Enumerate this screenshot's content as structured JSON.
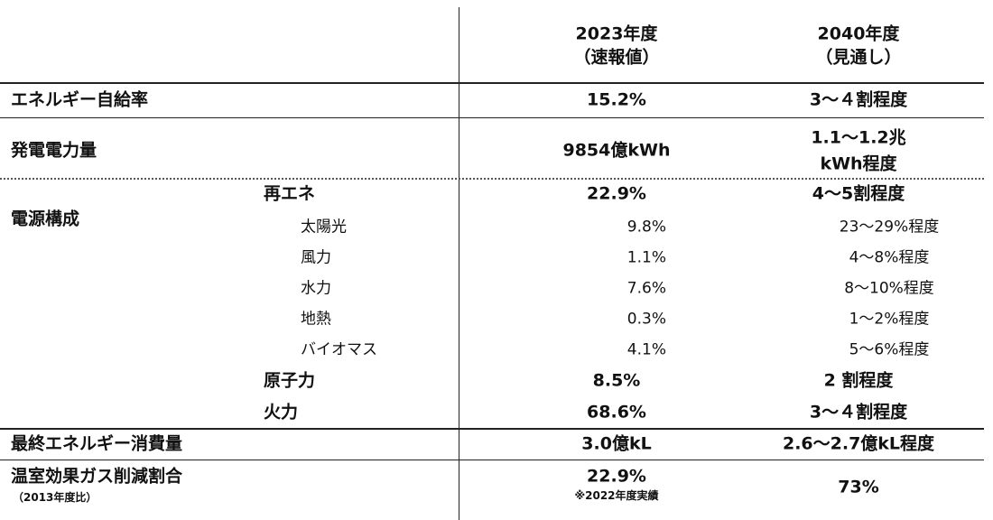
{
  "table": {
    "header": [
      [
        "2023年度",
        "（速報値）"
      ],
      [
        "2040年度",
        "（見通し）"
      ]
    ],
    "rows": [
      {
        "label": "エネルギー自給率",
        "cells": [
          [
            "15.2%"
          ],
          [
            "3～４割程度"
          ]
        ]
      },
      {
        "label": "発電電力量",
        "cells": [
          [
            "9854億kWh"
          ],
          [
            "1.1～1.2兆",
            "kWh程度"
          ]
        ]
      },
      {
        "label": "電源構成",
        "items": [
          {
            "label": "再エネ",
            "cells": [
              "22.9%",
              "4～5割程度"
            ],
            "sub": [
              {
                "label": "太陽光",
                "cells": [
                  "9.8%",
                  "23～29%程度"
                ]
              },
              {
                "label": "風力",
                "cells": [
                  "1.1%",
                  "4～8%程度"
                ]
              },
              {
                "label": "水力",
                "cells": [
                  "7.6%",
                  "8～10%程度"
                ]
              },
              {
                "label": "地熱",
                "cells": [
                  "0.3%",
                  "1～2%程度"
                ]
              },
              {
                "label": "バイオマス",
                "cells": [
                  "4.1%",
                  "5～6%程度"
                ]
              }
            ]
          },
          {
            "label": "原子力",
            "cells": [
              "8.5%",
              "2 割程度"
            ]
          },
          {
            "label": "火力",
            "cells": [
              "68.6%",
              "3～４割程度"
            ]
          }
        ]
      },
      {
        "label": "最終エネルギー消費量",
        "cells": [
          [
            "3.0億kL"
          ],
          [
            "2.6～2.7億kL程度"
          ]
        ]
      },
      {
        "label": "温室効果ガス削減割合",
        "note": "（2013年度比）",
        "cells": [
          [
            "22.9%",
            "※2022年度実績"
          ],
          [
            "73%"
          ]
        ]
      }
    ]
  }
}
